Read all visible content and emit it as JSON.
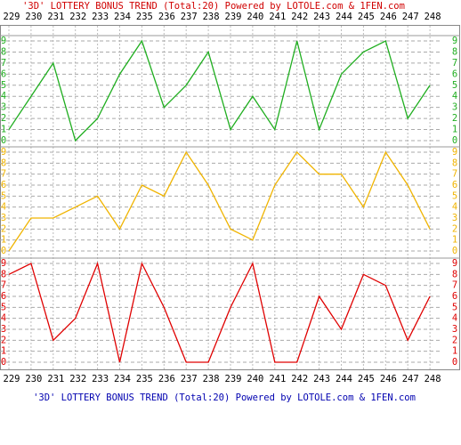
{
  "chart_data": {
    "type": "line",
    "title": "'3D' LOTTERY BONUS TREND (Total:20)  Powered by LOTOLE.com & 1FEN.com",
    "footer": "'3D' LOTTERY BONUS TREND (Total:20)  Powered by LOTOLE.com & 1FEN.com",
    "categories": [
      "229",
      "230",
      "231",
      "232",
      "233",
      "234",
      "235",
      "236",
      "237",
      "238",
      "239",
      "240",
      "241",
      "242",
      "243",
      "244",
      "245",
      "246",
      "247",
      "248"
    ],
    "ylim": [
      0,
      9
    ],
    "yticks": [
      0,
      1,
      2,
      3,
      4,
      5,
      6,
      7,
      8,
      9
    ],
    "grid": true,
    "title_color": "#d00000",
    "footer_color": "#0000b0",
    "series": [
      {
        "color": "#1fae1f",
        "values": [
          1,
          4,
          7,
          0,
          2,
          6,
          9,
          3,
          5,
          8,
          1,
          4,
          1,
          9,
          1,
          6,
          8,
          9,
          2,
          5
        ]
      },
      {
        "color": "#f0b400",
        "values": [
          0,
          3,
          3,
          4,
          5,
          2,
          6,
          5,
          9,
          6,
          2,
          1,
          6,
          9,
          7,
          7,
          4,
          9,
          6,
          2
        ]
      },
      {
        "color": "#e00000",
        "values": [
          8,
          9,
          2,
          4,
          9,
          0,
          9,
          5,
          0,
          0,
          5,
          9,
          0,
          0,
          6,
          3,
          8,
          7,
          2,
          6
        ]
      }
    ]
  }
}
